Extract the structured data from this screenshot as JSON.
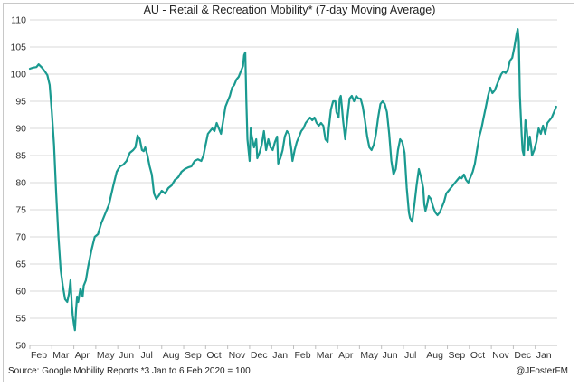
{
  "chart_data": {
    "type": "line",
    "title": "AU - Retail & Recreation Mobility* (7-day Moving Average)",
    "xlabel": "",
    "ylabel": "",
    "ylim": [
      50,
      110
    ],
    "yticks": [
      50,
      55,
      60,
      65,
      70,
      75,
      80,
      85,
      90,
      95,
      100,
      105,
      110
    ],
    "xticks": [
      "Feb",
      "Mar",
      "Apr",
      "May",
      "Jun",
      "Jul",
      "Aug",
      "Sep",
      "Oct",
      "Nov",
      "Dec",
      "Jan",
      "Feb",
      "Mar",
      "Apr",
      "May",
      "Jun",
      "Jul",
      "Aug",
      "Sep",
      "Oct",
      "Nov",
      "Dec",
      "Jan"
    ],
    "grid": "horizontal",
    "line_color": "#1a9a90",
    "x_unit": "months since Feb 2020",
    "series": [
      {
        "name": "",
        "points": [
          [
            0.0,
            101.0
          ],
          [
            0.15,
            101.2
          ],
          [
            0.3,
            101.3
          ],
          [
            0.4,
            101.8
          ],
          [
            0.55,
            101.2
          ],
          [
            0.7,
            100.4
          ],
          [
            0.8,
            99.8
          ],
          [
            0.9,
            98.0
          ],
          [
            1.0,
            93.0
          ],
          [
            1.1,
            87.0
          ],
          [
            1.2,
            78.0
          ],
          [
            1.3,
            70.0
          ],
          [
            1.4,
            64.0
          ],
          [
            1.5,
            61.0
          ],
          [
            1.6,
            58.5
          ],
          [
            1.7,
            58.0
          ],
          [
            1.78,
            59.5
          ],
          [
            1.85,
            62.0
          ],
          [
            1.9,
            58.0
          ],
          [
            1.95,
            55.5
          ],
          [
            2.0,
            54.0
          ],
          [
            2.05,
            52.8
          ],
          [
            2.1,
            56.5
          ],
          [
            2.15,
            59.0
          ],
          [
            2.2,
            58.0
          ],
          [
            2.3,
            60.5
          ],
          [
            2.4,
            59.0
          ],
          [
            2.45,
            61.0
          ],
          [
            2.55,
            62.0
          ],
          [
            2.65,
            64.5
          ],
          [
            2.8,
            67.5
          ],
          [
            2.95,
            70.0
          ],
          [
            3.1,
            70.5
          ],
          [
            3.25,
            72.5
          ],
          [
            3.4,
            74.0
          ],
          [
            3.6,
            76.0
          ],
          [
            3.8,
            79.5
          ],
          [
            3.95,
            82.0
          ],
          [
            4.1,
            83.0
          ],
          [
            4.25,
            83.3
          ],
          [
            4.4,
            84.0
          ],
          [
            4.55,
            85.5
          ],
          [
            4.7,
            86.0
          ],
          [
            4.8,
            86.5
          ],
          [
            4.9,
            88.7
          ],
          [
            5.0,
            88.0
          ],
          [
            5.1,
            86.0
          ],
          [
            5.18,
            85.8
          ],
          [
            5.25,
            86.5
          ],
          [
            5.35,
            85.0
          ],
          [
            5.45,
            83.0
          ],
          [
            5.55,
            81.5
          ],
          [
            5.65,
            78.0
          ],
          [
            5.75,
            77.0
          ],
          [
            5.85,
            77.5
          ],
          [
            6.0,
            78.5
          ],
          [
            6.15,
            78.0
          ],
          [
            6.3,
            79.0
          ],
          [
            6.45,
            79.5
          ],
          [
            6.6,
            80.5
          ],
          [
            6.75,
            81.0
          ],
          [
            6.9,
            82.0
          ],
          [
            7.05,
            82.5
          ],
          [
            7.2,
            82.8
          ],
          [
            7.35,
            83.0
          ],
          [
            7.5,
            84.0
          ],
          [
            7.65,
            84.3
          ],
          [
            7.8,
            84.0
          ],
          [
            7.9,
            85.0
          ],
          [
            8.0,
            87.0
          ],
          [
            8.1,
            89.0
          ],
          [
            8.2,
            89.5
          ],
          [
            8.3,
            90.0
          ],
          [
            8.4,
            89.5
          ],
          [
            8.5,
            91.0
          ],
          [
            8.6,
            90.0
          ],
          [
            8.7,
            89.0
          ],
          [
            8.8,
            91.5
          ],
          [
            8.9,
            94.0
          ],
          [
            9.0,
            95.0
          ],
          [
            9.1,
            96.0
          ],
          [
            9.2,
            97.5
          ],
          [
            9.3,
            98.0
          ],
          [
            9.4,
            99.0
          ],
          [
            9.5,
            99.5
          ],
          [
            9.6,
            100.5
          ],
          [
            9.7,
            101.5
          ],
          [
            9.75,
            103.5
          ],
          [
            9.8,
            104.0
          ],
          [
            9.85,
            95.0
          ],
          [
            9.9,
            88.0
          ],
          [
            9.95,
            86.0
          ],
          [
            10.0,
            84.0
          ],
          [
            10.05,
            90.0
          ],
          [
            10.1,
            88.5
          ],
          [
            10.2,
            86.5
          ],
          [
            10.3,
            88.0
          ],
          [
            10.35,
            84.5
          ],
          [
            10.45,
            85.5
          ],
          [
            10.55,
            87.0
          ],
          [
            10.65,
            89.5
          ],
          [
            10.75,
            86.0
          ],
          [
            10.85,
            88.0
          ],
          [
            10.95,
            86.5
          ],
          [
            11.05,
            86.0
          ],
          [
            11.15,
            87.5
          ],
          [
            11.25,
            88.5
          ],
          [
            11.3,
            83.5
          ],
          [
            11.4,
            84.5
          ],
          [
            11.5,
            86.0
          ],
          [
            11.6,
            88.5
          ],
          [
            11.65,
            89.0
          ],
          [
            11.7,
            89.5
          ],
          [
            11.8,
            89.0
          ],
          [
            11.9,
            86.0
          ],
          [
            11.95,
            84.0
          ],
          [
            12.05,
            86.0
          ],
          [
            12.15,
            87.5
          ],
          [
            12.25,
            88.5
          ],
          [
            12.35,
            89.5
          ],
          [
            12.45,
            90.0
          ],
          [
            12.55,
            91.0
          ],
          [
            12.65,
            91.5
          ],
          [
            12.75,
            92.0
          ],
          [
            12.85,
            91.5
          ],
          [
            12.95,
            92.0
          ],
          [
            13.05,
            91.0
          ],
          [
            13.15,
            90.5
          ],
          [
            13.25,
            91.0
          ],
          [
            13.35,
            90.5
          ],
          [
            13.45,
            88.0
          ],
          [
            13.55,
            87.5
          ],
          [
            13.6,
            90.0
          ],
          [
            13.7,
            93.5
          ],
          [
            13.8,
            95.0
          ],
          [
            13.9,
            95.0
          ],
          [
            13.95,
            93.0
          ],
          [
            14.05,
            92.0
          ],
          [
            14.1,
            95.5
          ],
          [
            14.15,
            96.0
          ],
          [
            14.2,
            94.0
          ],
          [
            14.25,
            91.5
          ],
          [
            14.35,
            88.0
          ],
          [
            14.45,
            92.0
          ],
          [
            14.55,
            95.5
          ],
          [
            14.65,
            96.0
          ],
          [
            14.75,
            95.0
          ],
          [
            14.85,
            96.0
          ],
          [
            14.95,
            95.5
          ],
          [
            15.05,
            95.5
          ],
          [
            15.15,
            94.0
          ],
          [
            15.25,
            91.5
          ],
          [
            15.35,
            88.5
          ],
          [
            15.45,
            86.5
          ],
          [
            15.55,
            86.0
          ],
          [
            15.65,
            87.0
          ],
          [
            15.75,
            89.0
          ],
          [
            15.85,
            92.0
          ],
          [
            15.95,
            94.5
          ],
          [
            16.05,
            95.0
          ],
          [
            16.15,
            94.5
          ],
          [
            16.25,
            93.0
          ],
          [
            16.35,
            89.0
          ],
          [
            16.45,
            84.0
          ],
          [
            16.55,
            81.5
          ],
          [
            16.65,
            82.5
          ],
          [
            16.75,
            86.0
          ],
          [
            16.85,
            88.0
          ],
          [
            16.95,
            87.5
          ],
          [
            17.05,
            85.5
          ],
          [
            17.15,
            79.0
          ],
          [
            17.25,
            74.5
          ],
          [
            17.3,
            73.5
          ],
          [
            17.4,
            72.8
          ],
          [
            17.5,
            76.0
          ],
          [
            17.6,
            79.5
          ],
          [
            17.7,
            82.5
          ],
          [
            17.8,
            81.0
          ],
          [
            17.9,
            79.0
          ],
          [
            17.95,
            76.0
          ],
          [
            18.0,
            74.8
          ],
          [
            18.05,
            75.5
          ],
          [
            18.15,
            77.5
          ],
          [
            18.25,
            77.0
          ],
          [
            18.35,
            75.5
          ],
          [
            18.45,
            74.5
          ],
          [
            18.55,
            74.0
          ],
          [
            18.65,
            74.5
          ],
          [
            18.75,
            75.5
          ],
          [
            18.85,
            76.5
          ],
          [
            18.95,
            78.0
          ],
          [
            19.05,
            78.5
          ],
          [
            19.15,
            79.0
          ],
          [
            19.25,
            79.5
          ],
          [
            19.35,
            80.0
          ],
          [
            19.45,
            80.5
          ],
          [
            19.55,
            81.0
          ],
          [
            19.65,
            80.8
          ],
          [
            19.75,
            81.5
          ],
          [
            19.85,
            80.5
          ],
          [
            19.95,
            80.0
          ],
          [
            20.05,
            81.0
          ],
          [
            20.15,
            82.0
          ],
          [
            20.25,
            83.5
          ],
          [
            20.35,
            86.0
          ],
          [
            20.45,
            88.5
          ],
          [
            20.55,
            90.0
          ],
          [
            20.65,
            92.0
          ],
          [
            20.75,
            94.0
          ],
          [
            20.85,
            96.0
          ],
          [
            20.95,
            97.5
          ],
          [
            21.05,
            96.5
          ],
          [
            21.15,
            97.0
          ],
          [
            21.25,
            98.0
          ],
          [
            21.35,
            99.0
          ],
          [
            21.45,
            100.0
          ],
          [
            21.55,
            100.5
          ],
          [
            21.65,
            100.2
          ],
          [
            21.75,
            100.8
          ],
          [
            21.85,
            102.5
          ],
          [
            21.95,
            103.0
          ],
          [
            22.05,
            105.0
          ],
          [
            22.15,
            107.5
          ],
          [
            22.2,
            108.3
          ],
          [
            22.25,
            106.0
          ],
          [
            22.3,
            96.0
          ],
          [
            22.38,
            89.0
          ],
          [
            22.42,
            86.0
          ],
          [
            22.48,
            85.0
          ],
          [
            22.55,
            91.5
          ],
          [
            22.62,
            89.5
          ],
          [
            22.68,
            86.0
          ],
          [
            22.75,
            88.5
          ],
          [
            22.8,
            87.0
          ],
          [
            22.85,
            85.0
          ],
          [
            22.95,
            86.0
          ],
          [
            23.05,
            87.5
          ],
          [
            23.15,
            90.0
          ],
          [
            23.25,
            89.0
          ],
          [
            23.35,
            90.5
          ],
          [
            23.45,
            89.0
          ],
          [
            23.55,
            91.0
          ],
          [
            23.65,
            91.5
          ],
          [
            23.75,
            92.0
          ],
          [
            23.85,
            93.0
          ],
          [
            23.95,
            94.0
          ]
        ]
      }
    ]
  },
  "footer": {
    "source": "Source: Google Mobility Reports *3 Jan to 6 Feb 2020 = 100",
    "credit": "@JFosterFM"
  }
}
